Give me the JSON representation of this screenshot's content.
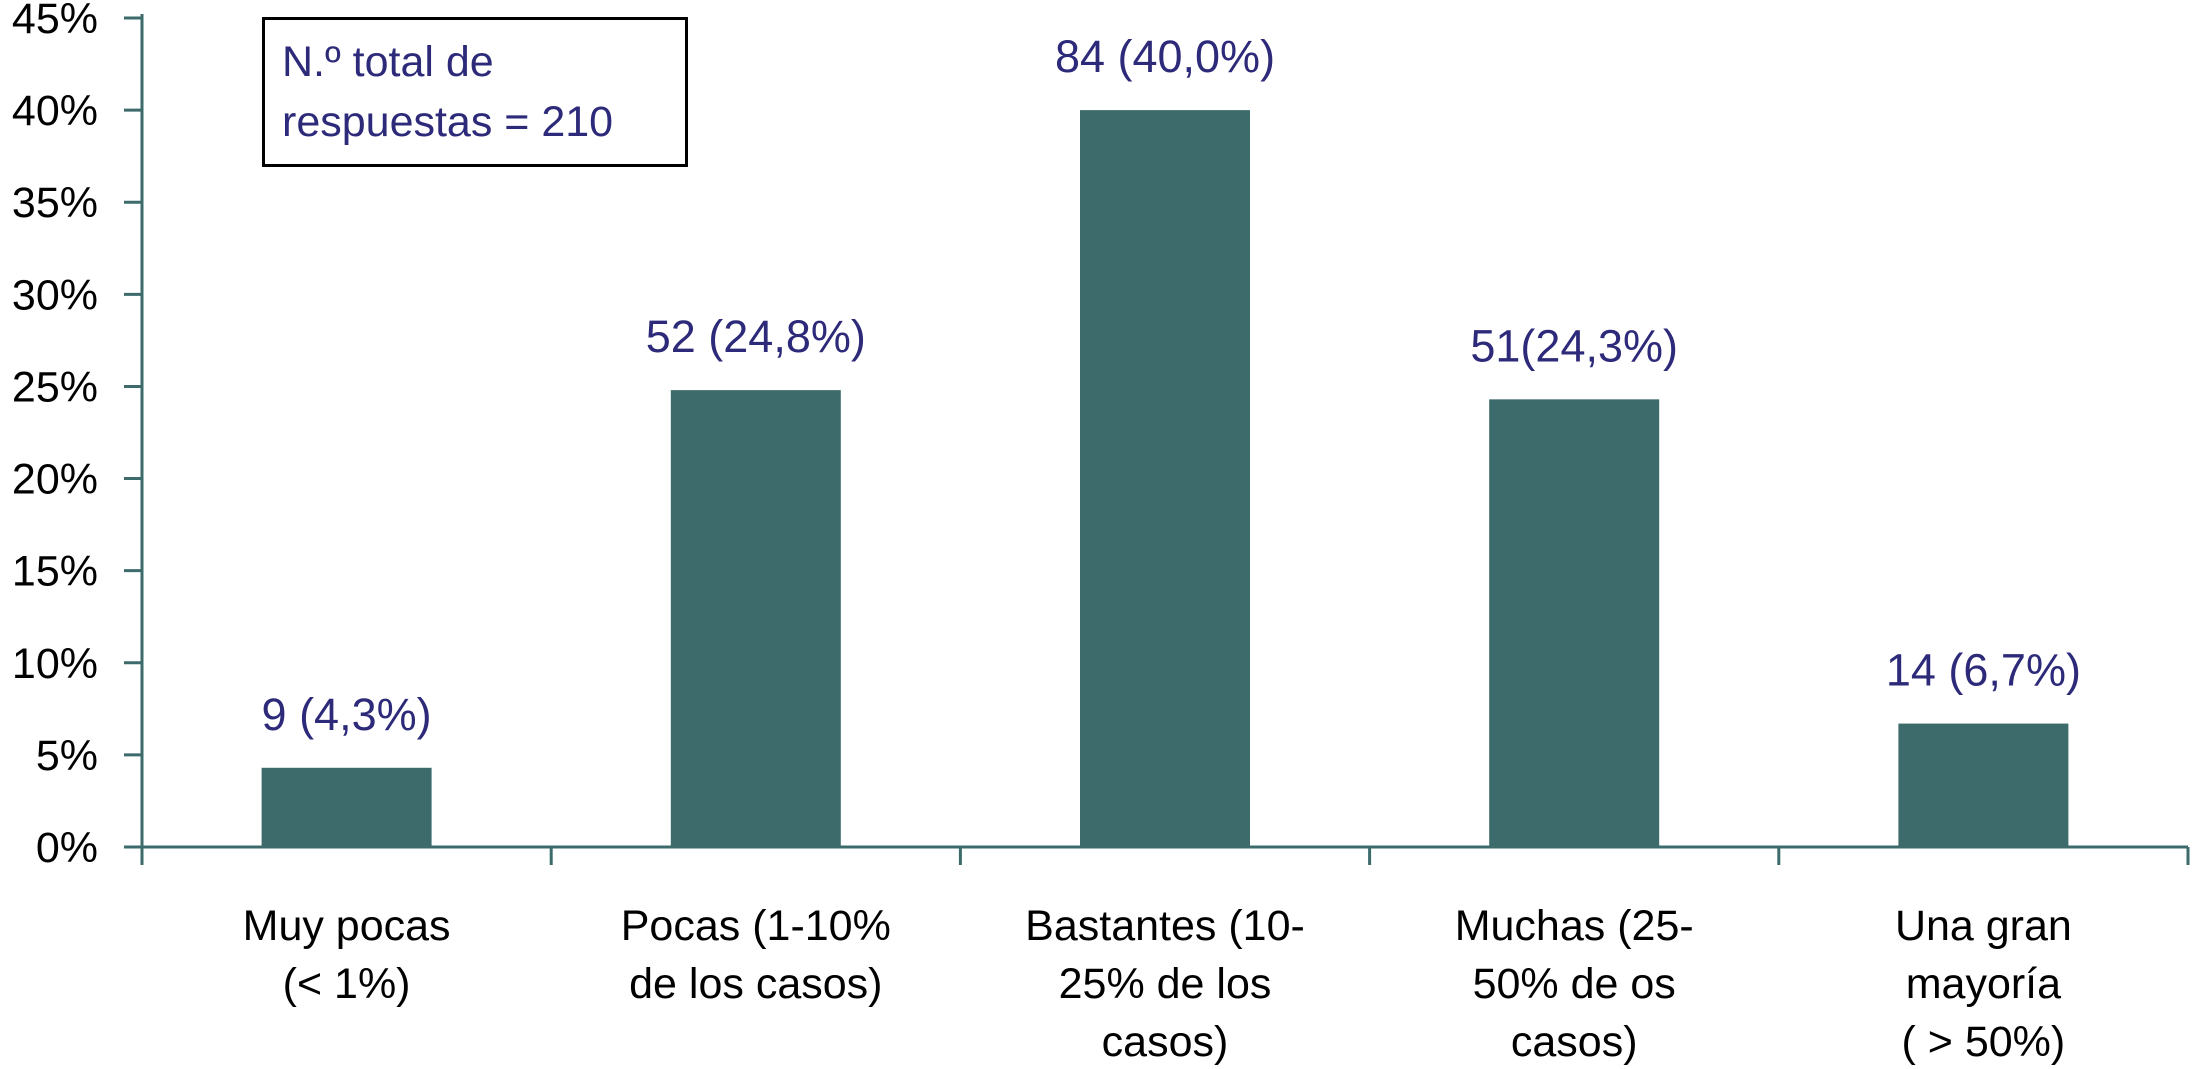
{
  "chart_data": {
    "type": "bar",
    "categories": [
      [
        "Muy pocas",
        "(< 1%)"
      ],
      [
        "Pocas (1-10%",
        "de los casos)"
      ],
      [
        "Bastantes (10-",
        "25% de los",
        "casos)"
      ],
      [
        "Muchas (25-",
        "50% de os",
        "casos)"
      ],
      [
        "Una gran",
        "mayoría",
        "( > 50%)"
      ]
    ],
    "values": [
      4.3,
      24.8,
      40.0,
      24.3,
      6.7
    ],
    "data_labels": [
      "9 (4,3%)",
      "52 (24,8%)",
      "84 (40,0%)",
      "51(24,3%)",
      "14 (6,7%)"
    ],
    "yticks": [
      "0%",
      "5%",
      "10%",
      "15%",
      "20%",
      "25%",
      "30%",
      "35%",
      "40%",
      "45%"
    ],
    "ylim": [
      0,
      45
    ],
    "xlabel": "",
    "ylabel": "",
    "title": "",
    "annotation": [
      "N.º total de",
      "respuestas = 210"
    ],
    "grid": false,
    "colors": {
      "bar": "#3d6b6b",
      "axis": "#3d6b6b",
      "label_text": "#2e2a7a",
      "tick_text": "#000000"
    }
  }
}
